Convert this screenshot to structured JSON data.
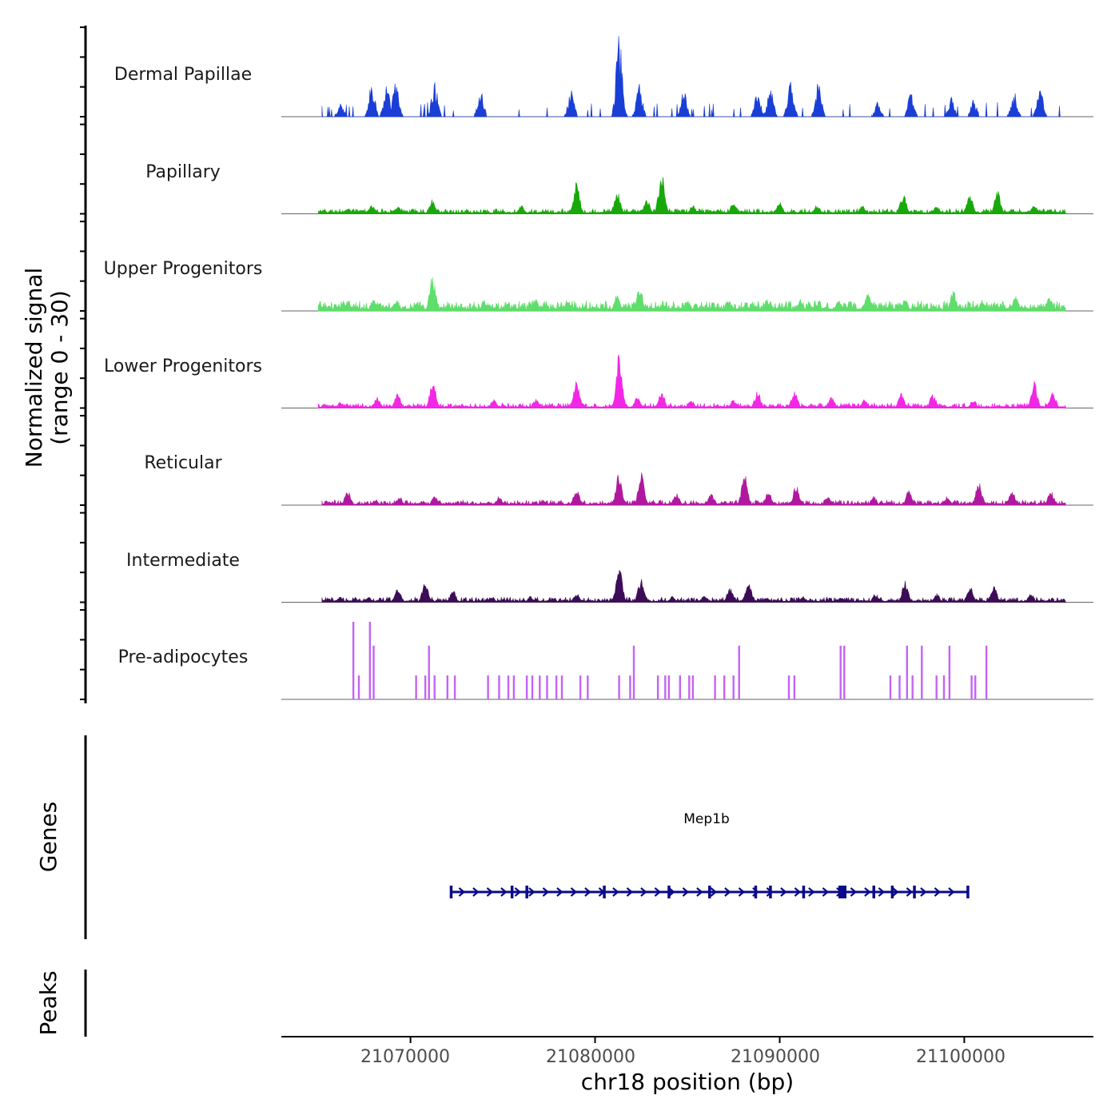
{
  "chart_data": {
    "type": "area",
    "title": "",
    "ylabel_line1": "Normalized signal",
    "ylabel_line2": "(range 0 - 30)",
    "y_range": [
      0,
      30
    ],
    "chromosome": "chr18",
    "xlabel": "chr18 position (bp)",
    "x_range": [
      21063000,
      21107000
    ],
    "x_ticks": [
      21070000,
      21080000,
      21090000,
      21100000
    ],
    "x_tick_labels": [
      "21070000",
      "21080000",
      "21090000",
      "21100000"
    ],
    "series": [
      {
        "name": "Dermal Papillae",
        "color": "#1a3fd6",
        "style": "sparse",
        "start": 21065200,
        "end": 21105200,
        "peaks": [
          [
            21066200,
            5
          ],
          [
            21067900,
            12
          ],
          [
            21068700,
            11
          ],
          [
            21069200,
            12
          ],
          [
            21071300,
            12
          ],
          [
            21073800,
            9
          ],
          [
            21078700,
            9
          ],
          [
            21081300,
            29
          ],
          [
            21082400,
            11
          ],
          [
            21084800,
            9
          ],
          [
            21088800,
            9
          ],
          [
            21089500,
            10
          ],
          [
            21090600,
            13
          ],
          [
            21092100,
            12
          ],
          [
            21095300,
            5
          ],
          [
            21097100,
            8
          ],
          [
            21099300,
            7
          ],
          [
            21100500,
            7
          ],
          [
            21102700,
            9
          ],
          [
            21104100,
            10
          ]
        ]
      },
      {
        "name": "Papillary",
        "color": "#18a80a",
        "style": "dense",
        "start": 21065000,
        "end": 21105500,
        "baseline": 1,
        "peaks": [
          [
            21066600,
            2
          ],
          [
            21067900,
            3
          ],
          [
            21069300,
            3
          ],
          [
            21071200,
            5
          ],
          [
            21076000,
            3
          ],
          [
            21079000,
            11
          ],
          [
            21081200,
            8
          ],
          [
            21082800,
            5
          ],
          [
            21083600,
            15
          ],
          [
            21085300,
            3
          ],
          [
            21087500,
            4
          ],
          [
            21090000,
            4
          ],
          [
            21092000,
            3
          ],
          [
            21094500,
            3
          ],
          [
            21096700,
            7
          ],
          [
            21098500,
            3
          ],
          [
            21100300,
            7
          ],
          [
            21101800,
            8
          ],
          [
            21103800,
            3
          ]
        ]
      },
      {
        "name": "Upper Progenitors",
        "color": "#5ede6a",
        "style": "dense",
        "start": 21065000,
        "end": 21105500,
        "baseline": 2,
        "peaks": [
          [
            21066600,
            4
          ],
          [
            21068000,
            4
          ],
          [
            21069200,
            4
          ],
          [
            21071200,
            13
          ],
          [
            21074000,
            4
          ],
          [
            21076800,
            4
          ],
          [
            21078500,
            4
          ],
          [
            21081200,
            6
          ],
          [
            21082400,
            9
          ],
          [
            21085000,
            4
          ],
          [
            21087200,
            4
          ],
          [
            21089300,
            4
          ],
          [
            21091100,
            4
          ],
          [
            21093200,
            4
          ],
          [
            21094800,
            7
          ],
          [
            21096800,
            4
          ],
          [
            21099400,
            7
          ],
          [
            21101000,
            4
          ],
          [
            21102800,
            5
          ],
          [
            21104600,
            5
          ]
        ]
      },
      {
        "name": "Lower Progenitors",
        "color": "#f227e6",
        "style": "dense",
        "start": 21065000,
        "end": 21105500,
        "baseline": 1,
        "peaks": [
          [
            21066200,
            2
          ],
          [
            21068200,
            4
          ],
          [
            21069300,
            5
          ],
          [
            21071200,
            10
          ],
          [
            21074500,
            3
          ],
          [
            21076800,
            3
          ],
          [
            21079000,
            10
          ],
          [
            21081300,
            19
          ],
          [
            21082300,
            4
          ],
          [
            21083600,
            6
          ],
          [
            21085200,
            3
          ],
          [
            21087500,
            3
          ],
          [
            21088800,
            6
          ],
          [
            21090800,
            6
          ],
          [
            21092800,
            4
          ],
          [
            21094600,
            3
          ],
          [
            21096600,
            5
          ],
          [
            21098300,
            5
          ],
          [
            21100500,
            3
          ],
          [
            21103800,
            9
          ],
          [
            21104800,
            6
          ]
        ]
      },
      {
        "name": "Reticular",
        "color": "#b0189f",
        "style": "dense",
        "start": 21065200,
        "end": 21105500,
        "baseline": 1,
        "peaks": [
          [
            21066600,
            5
          ],
          [
            21068100,
            2
          ],
          [
            21069400,
            3
          ],
          [
            21071300,
            3
          ],
          [
            21074800,
            3
          ],
          [
            21077200,
            2
          ],
          [
            21079000,
            6
          ],
          [
            21081300,
            12
          ],
          [
            21082500,
            11
          ],
          [
            21084400,
            4
          ],
          [
            21086300,
            4
          ],
          [
            21088100,
            11
          ],
          [
            21089400,
            5
          ],
          [
            21090900,
            7
          ],
          [
            21092600,
            3
          ],
          [
            21095100,
            3
          ],
          [
            21097000,
            5
          ],
          [
            21099100,
            3
          ],
          [
            21100800,
            8
          ],
          [
            21102600,
            5
          ],
          [
            21104700,
            5
          ]
        ]
      },
      {
        "name": "Intermediate",
        "color": "#3d0c57",
        "style": "dense",
        "start": 21065200,
        "end": 21105500,
        "baseline": 1,
        "peaks": [
          [
            21066200,
            2
          ],
          [
            21067700,
            2
          ],
          [
            21069300,
            5
          ],
          [
            21070800,
            8
          ],
          [
            21072300,
            4
          ],
          [
            21074400,
            2
          ],
          [
            21076500,
            2
          ],
          [
            21079000,
            3
          ],
          [
            21081300,
            13
          ],
          [
            21082500,
            9
          ],
          [
            21084200,
            2
          ],
          [
            21085900,
            2
          ],
          [
            21087300,
            5
          ],
          [
            21088300,
            7
          ],
          [
            21089300,
            2
          ],
          [
            21091300,
            2
          ],
          [
            21093300,
            2
          ],
          [
            21095200,
            3
          ],
          [
            21096800,
            8
          ],
          [
            21098500,
            3
          ],
          [
            21100300,
            6
          ],
          [
            21101600,
            6
          ],
          [
            21103600,
            3
          ]
        ]
      },
      {
        "name": "Pre-adipocytes",
        "color": "#c463f5",
        "style": "spikes",
        "start": 21066800,
        "end": 21101000,
        "peaks": [
          [
            21066900,
            26
          ],
          [
            21067200,
            8
          ],
          [
            21067800,
            26
          ],
          [
            21068000,
            18
          ],
          [
            21070300,
            8
          ],
          [
            21070800,
            8
          ],
          [
            21071000,
            18
          ],
          [
            21071300,
            8
          ],
          [
            21072000,
            8
          ],
          [
            21072400,
            8
          ],
          [
            21074200,
            8
          ],
          [
            21074800,
            8
          ],
          [
            21075300,
            8
          ],
          [
            21075600,
            8
          ],
          [
            21076300,
            8
          ],
          [
            21076600,
            8
          ],
          [
            21077000,
            8
          ],
          [
            21077400,
            8
          ],
          [
            21077900,
            8
          ],
          [
            21078200,
            8
          ],
          [
            21079200,
            8
          ],
          [
            21079600,
            8
          ],
          [
            21081300,
            8
          ],
          [
            21081900,
            8
          ],
          [
            21082100,
            18
          ],
          [
            21083400,
            8
          ],
          [
            21083800,
            8
          ],
          [
            21084000,
            8
          ],
          [
            21084600,
            8
          ],
          [
            21085100,
            8
          ],
          [
            21085300,
            8
          ],
          [
            21086500,
            8
          ],
          [
            21087000,
            8
          ],
          [
            21087500,
            8
          ],
          [
            21087800,
            18
          ],
          [
            21090500,
            8
          ],
          [
            21090800,
            8
          ],
          [
            21093300,
            18
          ],
          [
            21093500,
            18
          ],
          [
            21096000,
            8
          ],
          [
            21096500,
            8
          ],
          [
            21096900,
            18
          ],
          [
            21097200,
            8
          ],
          [
            21097700,
            18
          ],
          [
            21098500,
            8
          ],
          [
            21098900,
            8
          ],
          [
            21099200,
            18
          ],
          [
            21100400,
            8
          ],
          [
            21100600,
            8
          ],
          [
            21101200,
            18
          ]
        ]
      }
    ],
    "genes_label": "Genes",
    "gene": {
      "name": "Mep1b",
      "start": 21072200,
      "end": 21100200,
      "strand": "+",
      "exons": [
        21072200,
        21075500,
        21076300,
        21080500,
        21084000,
        21086200,
        21088700,
        21089500,
        21091300,
        21093400,
        21095100,
        21096100,
        21097300,
        21100200
      ]
    },
    "peaks_label": "Peaks",
    "peaks_track": []
  }
}
